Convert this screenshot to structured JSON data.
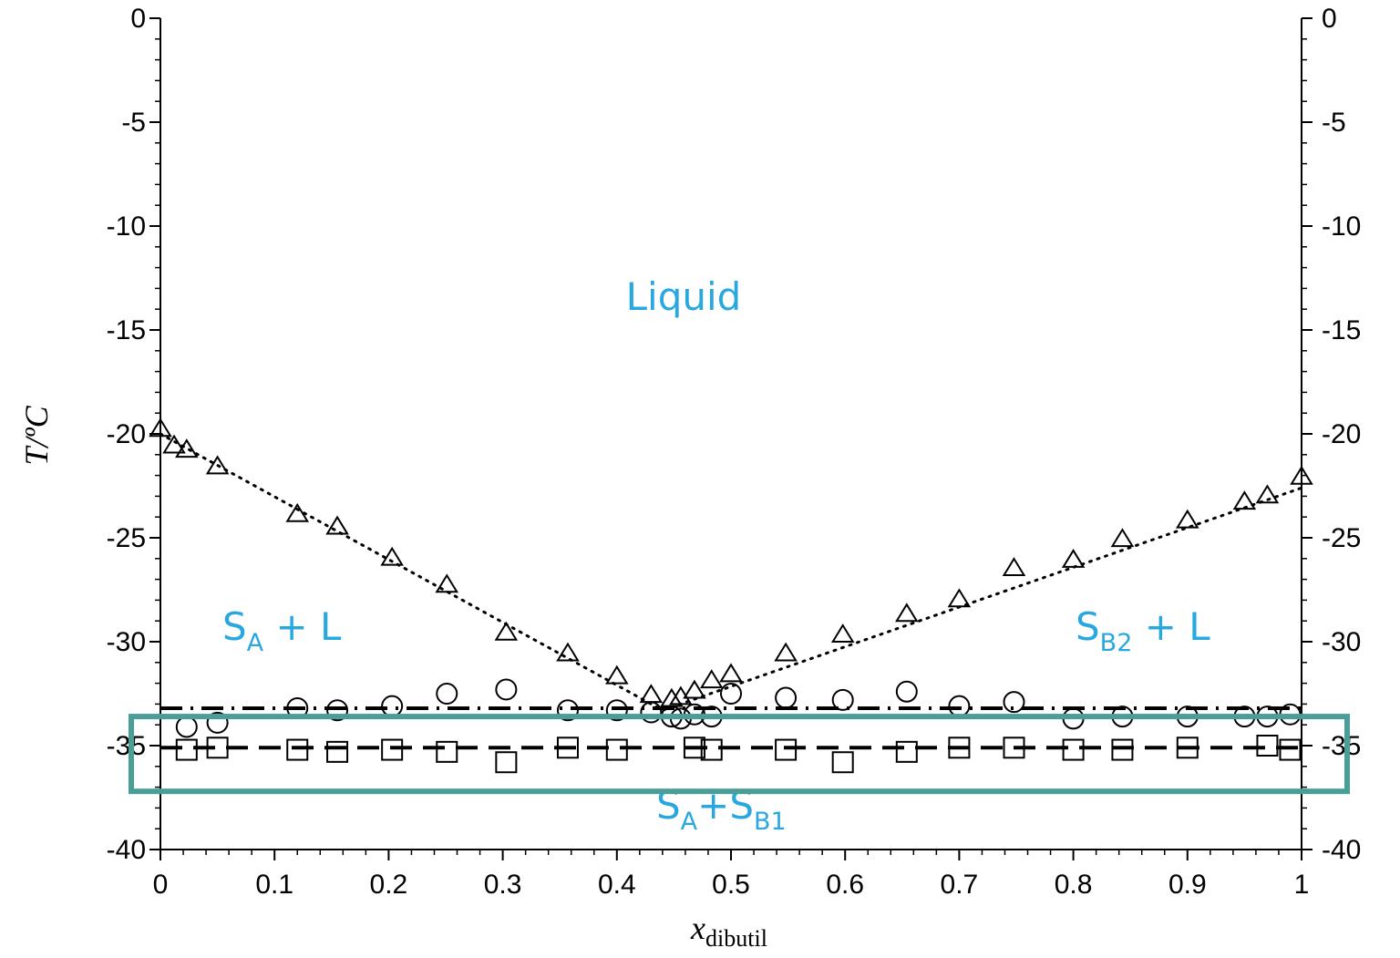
{
  "chart_data": {
    "type": "scatter",
    "title": "",
    "xlabel": {
      "main": "x",
      "sub": "dibutil"
    },
    "ylabel": "T/ºC",
    "xlim": [
      0,
      1
    ],
    "ylim": [
      -40,
      0
    ],
    "x_ticks": [
      "0",
      "0.1",
      "0.2",
      "0.3",
      "0.4",
      "0.5",
      "0.6",
      "0.7",
      "0.8",
      "0.9",
      "1"
    ],
    "y_ticks": [
      "0",
      "-5",
      "-10",
      "-15",
      "-20",
      "-25",
      "-30",
      "-35",
      "-40"
    ],
    "y2_ticks": [
      "0",
      "-5",
      "-10",
      "-15",
      "-20",
      "-25",
      "-30",
      "-35",
      "-40"
    ],
    "series": [
      {
        "marker": "triangle",
        "points": [
          [
            0.0,
            -19.8
          ],
          [
            0.012,
            -20.6
          ],
          [
            0.023,
            -20.8
          ],
          [
            0.05,
            -21.6
          ],
          [
            0.12,
            -23.9
          ],
          [
            0.155,
            -24.5
          ],
          [
            0.203,
            -26.0
          ],
          [
            0.251,
            -27.3
          ],
          [
            0.303,
            -29.6
          ],
          [
            0.357,
            -30.6
          ],
          [
            0.4,
            -31.7
          ],
          [
            0.43,
            -32.6
          ],
          [
            0.448,
            -32.8
          ],
          [
            0.456,
            -32.7
          ],
          [
            0.468,
            -32.4
          ],
          [
            0.483,
            -31.9
          ],
          [
            0.5,
            -31.6
          ],
          [
            0.548,
            -30.6
          ],
          [
            0.598,
            -29.7
          ],
          [
            0.654,
            -28.7
          ],
          [
            0.7,
            -28.0
          ],
          [
            0.748,
            -26.5
          ],
          [
            0.8,
            -26.1
          ],
          [
            0.843,
            -25.1
          ],
          [
            0.9,
            -24.2
          ],
          [
            0.95,
            -23.3
          ],
          [
            0.97,
            -23.0
          ],
          [
            1.0,
            -22.1
          ]
        ]
      },
      {
        "marker": "circle",
        "points": [
          [
            0.023,
            -34.1
          ],
          [
            0.05,
            -33.9
          ],
          [
            0.12,
            -33.2
          ],
          [
            0.155,
            -33.3
          ],
          [
            0.203,
            -33.1
          ],
          [
            0.251,
            -32.5
          ],
          [
            0.303,
            -32.3
          ],
          [
            0.357,
            -33.3
          ],
          [
            0.4,
            -33.3
          ],
          [
            0.43,
            -33.4
          ],
          [
            0.448,
            -33.6
          ],
          [
            0.456,
            -33.7
          ],
          [
            0.468,
            -33.5
          ],
          [
            0.483,
            -33.6
          ],
          [
            0.5,
            -32.5
          ],
          [
            0.548,
            -32.7
          ],
          [
            0.598,
            -32.8
          ],
          [
            0.654,
            -32.4
          ],
          [
            0.7,
            -33.1
          ],
          [
            0.748,
            -32.9
          ],
          [
            0.8,
            -33.7
          ],
          [
            0.843,
            -33.6
          ],
          [
            0.9,
            -33.6
          ],
          [
            0.95,
            -33.6
          ],
          [
            0.97,
            -33.6
          ],
          [
            0.99,
            -33.5
          ]
        ]
      },
      {
        "marker": "square",
        "points": [
          [
            0.023,
            -35.2
          ],
          [
            0.05,
            -35.1
          ],
          [
            0.12,
            -35.2
          ],
          [
            0.155,
            -35.3
          ],
          [
            0.203,
            -35.2
          ],
          [
            0.251,
            -35.3
          ],
          [
            0.303,
            -35.8
          ],
          [
            0.357,
            -35.1
          ],
          [
            0.4,
            -35.2
          ],
          [
            0.468,
            -35.1
          ],
          [
            0.483,
            -35.2
          ],
          [
            0.548,
            -35.2
          ],
          [
            0.598,
            -35.8
          ],
          [
            0.654,
            -35.3
          ],
          [
            0.7,
            -35.1
          ],
          [
            0.748,
            -35.1
          ],
          [
            0.8,
            -35.2
          ],
          [
            0.843,
            -35.2
          ],
          [
            0.9,
            -35.1
          ],
          [
            0.97,
            -35.0
          ],
          [
            0.99,
            -35.2
          ]
        ]
      }
    ],
    "lines": [
      {
        "style": "dotted",
        "points": [
          [
            0.0,
            -20.0
          ],
          [
            0.44,
            -33.3
          ],
          [
            1.0,
            -22.6
          ]
        ]
      },
      {
        "style": "dash-dot",
        "points": [
          [
            0.0,
            -33.2
          ],
          [
            1.0,
            -33.2
          ]
        ]
      },
      {
        "style": "dashed",
        "points": [
          [
            0.0,
            -35.1
          ],
          [
            1.0,
            -35.1
          ]
        ]
      }
    ],
    "regions": {
      "liquid": {
        "text": "Liquid"
      },
      "sa_l": {
        "main": "S",
        "sub": "A",
        "rest": " + L"
      },
      "sb2_l": {
        "main": "S",
        "sub": "B2",
        "rest": " + L"
      },
      "sa_sb1": {
        "main1": "S",
        "sub1": "A",
        "mid": "+S",
        "sub2": "B1"
      }
    },
    "highlight_y_range": [
      -37.2,
      -33.6
    ],
    "colors": {
      "region_text": "#29a8e0",
      "highlight": "#4a9e98",
      "marks": "#000000"
    }
  }
}
